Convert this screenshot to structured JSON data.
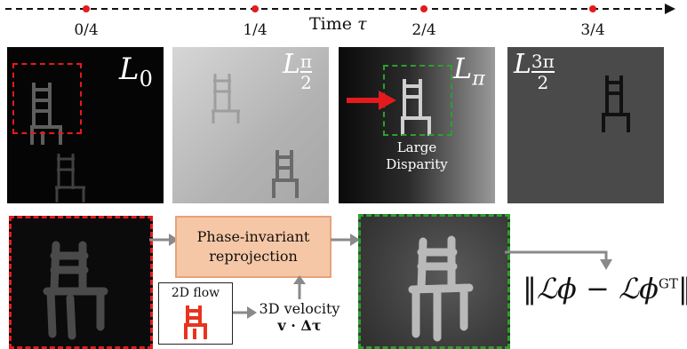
{
  "timeline": {
    "title": "Time",
    "symbol": "τ",
    "ticks": [
      "0/4",
      "1/4",
      "2/4",
      "3/4"
    ]
  },
  "frames": [
    {
      "label_main": "L",
      "label_sub": "0"
    },
    {
      "label_main": "L",
      "label_frac_top": "π",
      "label_frac_bot": "2"
    },
    {
      "label_main": "L",
      "label_sub": "π",
      "annotation": [
        "Large",
        "Disparity"
      ]
    },
    {
      "label_main": "L",
      "label_frac_top": "3π",
      "label_frac_bot": "2"
    }
  ],
  "pipeline": {
    "reproj_line1": "Phase-invariant",
    "reproj_line2": "reprojection",
    "flow_label": "2D flow",
    "velocity_line1": "3D velocity",
    "velocity_line2": "v · Δτ",
    "loss_text": "‖ℒϕ − ℒϕ"
  },
  "loss_sup": "GT",
  "colors": {
    "red_dash": "#e41a1c",
    "green_dash": "#2ca02c",
    "orange_box": "#f6c7a6",
    "arrow_gray": "#8a8a8a"
  }
}
